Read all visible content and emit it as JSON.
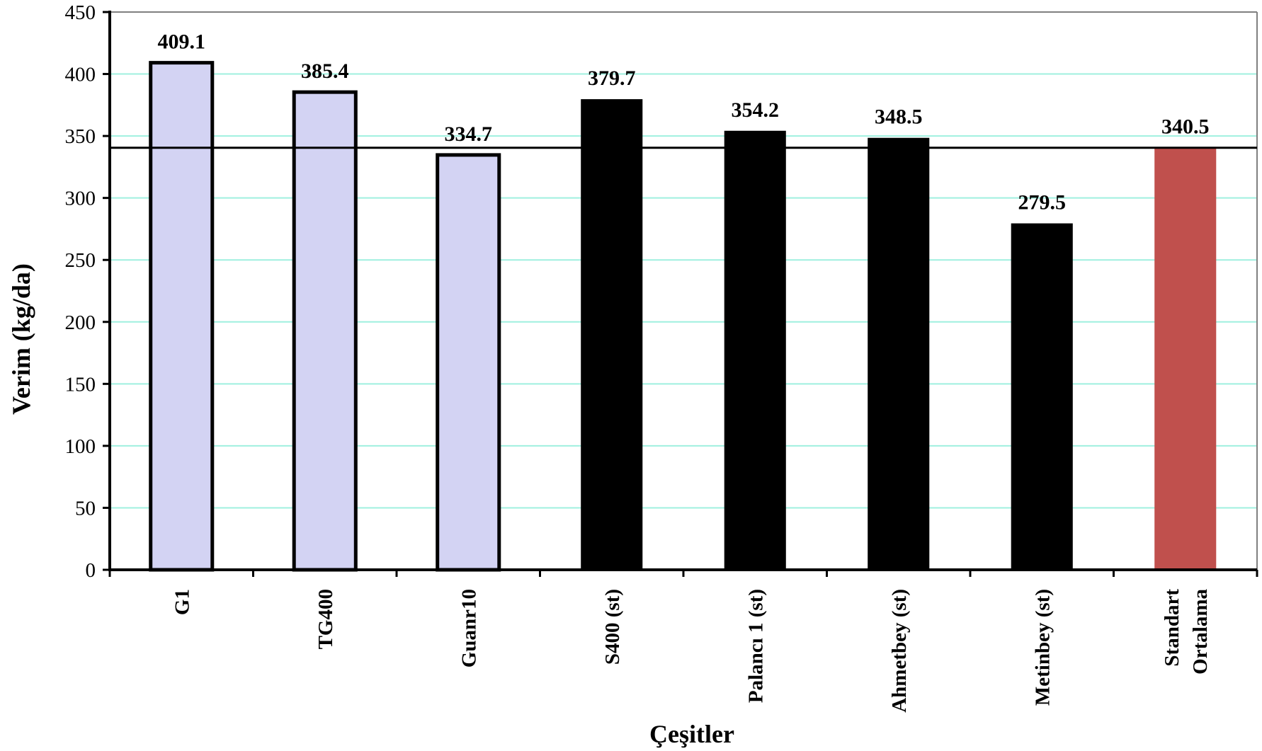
{
  "chart_data": {
    "type": "bar",
    "title": "",
    "xlabel": "Çeşitler",
    "ylabel": "Verim (kg/da)",
    "ylim": [
      0,
      450
    ],
    "yticks": [
      0,
      50,
      100,
      150,
      200,
      250,
      300,
      350,
      400,
      450
    ],
    "grid": true,
    "categories": [
      [
        "G1"
      ],
      [
        "TG400"
      ],
      [
        "Guanr10"
      ],
      [
        "S400 (st)"
      ],
      [
        "Palancı 1 (st)"
      ],
      [
        "Ahmetbey (st)"
      ],
      [
        "Metinbey (st)"
      ],
      [
        "Standart",
        "Ortalama"
      ]
    ],
    "values": [
      409.1,
      385.4,
      334.7,
      379.7,
      354.2,
      348.5,
      279.5,
      340.5
    ],
    "value_labels": [
      "409.1",
      "385.4",
      "334.7",
      "379.7",
      "354.2",
      "348.5",
      "279.5",
      "340.5"
    ],
    "bar_colors": [
      "#d3d3f3",
      "#d3d3f3",
      "#d3d3f3",
      "#000000",
      "#000000",
      "#000000",
      "#000000",
      "#c0504d"
    ],
    "reference_line": 340.5,
    "colors": {
      "grid": "#9ff0df",
      "axis": "#000000",
      "frame": "#808080"
    }
  }
}
